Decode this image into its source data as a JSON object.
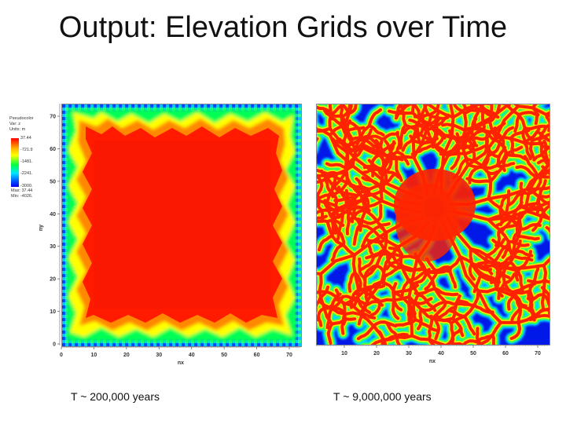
{
  "title": "Output: Elevation Grids over Time",
  "left_panel": {
    "caption": "T ~ 200,000 years",
    "legend": {
      "line1": "Pseudocolor",
      "line2": "Var: z",
      "line3": "Units: m",
      "ticks": [
        "37.44",
        "-721.9",
        "-1481.",
        "-2241.",
        "-3000."
      ],
      "max": "Max: 37.44",
      "min": "Min: -4026."
    },
    "x_ticks": [
      "0",
      "10",
      "20",
      "30",
      "40",
      "50",
      "60",
      "70"
    ],
    "y_ticks": [
      "0",
      "10",
      "20",
      "30",
      "40",
      "50",
      "60",
      "70"
    ],
    "x_label": "nx",
    "y_label": "ny"
  },
  "right_panel": {
    "caption": "T ~ 9,000,000 years",
    "x_ticks": [
      "10",
      "20",
      "30",
      "40",
      "50",
      "60",
      "70"
    ],
    "x_label": "nx"
  },
  "colors": {
    "high": "#ff0000",
    "mid_high": "#ffff00",
    "mid": "#00ff44",
    "mid_low": "#00e5ff",
    "low": "#0000ee"
  }
}
